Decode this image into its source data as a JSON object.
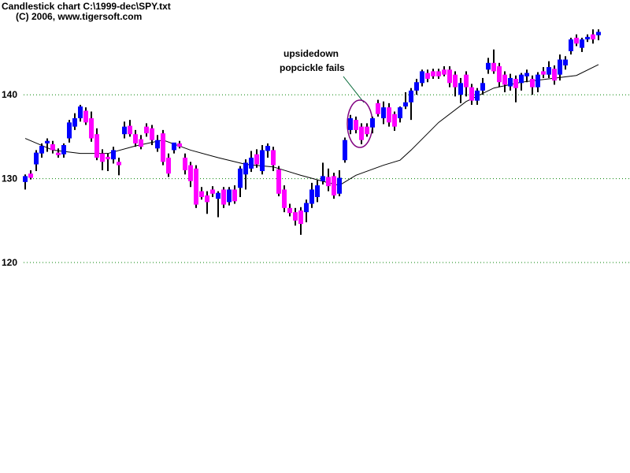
{
  "chart_data": {
    "type": "candlestick",
    "title": "Candlestick chart C:\\1999-dec\\SPY.txt",
    "subtitle": "(C) 2006, www.tigersoft.com",
    "annotation": [
      "upsidedown",
      "popcickle fails"
    ],
    "ylim": [
      94.9,
      151.3
    ],
    "yticks": [
      120,
      130,
      140
    ],
    "grid": true,
    "up_color": "#0000ff",
    "down_color": "#ff00ff",
    "open": [
      129.6,
      130.6,
      131.7,
      133,
      134.2,
      134.1,
      133.1,
      132.9,
      134.8,
      136.2,
      137.2,
      138.1,
      137.2,
      135.3,
      133,
      132.6,
      132.3,
      132,
      135.3,
      136.3,
      135.3,
      134.7,
      136.2,
      136,
      133.6,
      135.4,
      132.5,
      133.4,
      134.2,
      132.5,
      131.6,
      131.2,
      128.5,
      128,
      128.7,
      127.6,
      128.7,
      127.2,
      128.7,
      128.9,
      130.5,
      131.2,
      132.9,
      130.9,
      133.3,
      133.4,
      131.1,
      128.7,
      126.5,
      126,
      126.2,
      126,
      127,
      127.8,
      129.7,
      130.2,
      130.3,
      128.2,
      132.2,
      135.8,
      137,
      136.2,
      136.2,
      136.1,
      139,
      137.2,
      138.5,
      137.7,
      137.2,
      138.6,
      139.1,
      140.5,
      141.4,
      142.6,
      142.8,
      142.8,
      143,
      143,
      142.4,
      140,
      142.4,
      140.9,
      139.3,
      140.5,
      143,
      143.8,
      143.4,
      142.4,
      141,
      141.9,
      141.4,
      142.2,
      141.9,
      140.9,
      142.8,
      142.4,
      143.1,
      142.4,
      143.5,
      145.2,
      146.8,
      145.6,
      146.6,
      147.2,
      147.1
    ],
    "high": [
      130.5,
      131,
      133.4,
      134.2,
      134.8,
      134.5,
      133.6,
      134.2,
      137,
      137.8,
      138.8,
      138.5,
      138,
      136,
      133.5,
      133,
      133.8,
      132.5,
      136.8,
      137,
      135.8,
      135.2,
      136.6,
      136.4,
      135.2,
      135.8,
      133,
      134.2,
      134.5,
      133,
      132,
      131.6,
      129,
      128.5,
      129.1,
      128.5,
      129,
      129,
      129.2,
      131.5,
      132.3,
      133.3,
      133.5,
      134,
      134.2,
      133.8,
      131.5,
      129.2,
      127,
      126.5,
      126.6,
      127.5,
      129.5,
      129.8,
      131.9,
      131.2,
      130.7,
      131,
      134.9,
      137.6,
      137.4,
      136.6,
      136.6,
      137.4,
      139.4,
      139.2,
      139,
      138,
      138.6,
      140.3,
      140.8,
      141.9,
      143,
      143,
      143.1,
      143.1,
      143.4,
      143.4,
      142.8,
      142,
      142.8,
      141.3,
      140.8,
      142,
      144.4,
      145.4,
      143.8,
      142.8,
      142.5,
      142.3,
      142.6,
      143,
      142.3,
      142.7,
      143.3,
      144,
      143.5,
      144.8,
      144.6,
      146.8,
      147.2,
      146.8,
      147.2,
      147.8,
      147.8
    ],
    "low": [
      128.7,
      129.9,
      130.9,
      132.5,
      133.2,
      133,
      132.5,
      132.5,
      134.3,
      135.8,
      136.8,
      136.4,
      134.4,
      132.2,
      131,
      130.9,
      131.8,
      130.4,
      134.8,
      135,
      133.8,
      133.5,
      135,
      134,
      133.2,
      131.6,
      130.2,
      133,
      133.6,
      130.5,
      129,
      126.5,
      127.5,
      125.8,
      127.8,
      125.4,
      126.5,
      126.8,
      127,
      127.8,
      128.7,
      130.8,
      131.3,
      130.5,
      132.5,
      130.9,
      127.9,
      126,
      125.5,
      124.4,
      123.3,
      124.8,
      126.5,
      127.2,
      129.3,
      128.5,
      127.6,
      127.9,
      131.9,
      135.3,
      135.4,
      134.1,
      135,
      135.4,
      137.4,
      136.5,
      136.2,
      135.7,
      136.7,
      138.3,
      137,
      140,
      141,
      141.5,
      141.9,
      141.9,
      142.2,
      140.9,
      139.8,
      139,
      139.8,
      138.8,
      138.8,
      140,
      142.5,
      142.5,
      140.9,
      140.3,
      140.5,
      139.1,
      140.5,
      141.5,
      140,
      140.3,
      142,
      142,
      141.2,
      141.7,
      143,
      144.8,
      145.8,
      145.1,
      146.3,
      146.1,
      146.5
    ],
    "close": [
      130.3,
      130.1,
      133.1,
      133.9,
      134.5,
      133.4,
      132.8,
      134,
      136.7,
      137.2,
      138.6,
      136.7,
      134.8,
      132.5,
      132,
      132.3,
      133.4,
      131.6,
      136.2,
      135.3,
      134.2,
      133.8,
      135.4,
      134.6,
      134.6,
      132,
      130.6,
      134.3,
      133.8,
      131,
      129.7,
      126.9,
      127.8,
      127.2,
      128.2,
      128.3,
      126.9,
      128.7,
      127.3,
      131.2,
      131.9,
      132.5,
      131.7,
      133.4,
      133.9,
      131.6,
      128.2,
      126.5,
      125.9,
      125,
      124.6,
      127.1,
      128.7,
      129.2,
      130.3,
      129.1,
      128,
      130.1,
      134.6,
      137.2,
      135.8,
      134.6,
      135.3,
      137.2,
      137.7,
      138.5,
      136.7,
      136.2,
      138.5,
      139.1,
      140.5,
      141.5,
      142.8,
      141.9,
      142.2,
      142.2,
      142.4,
      141.4,
      140.9,
      141.4,
      140.9,
      139.3,
      140.5,
      141.4,
      143.8,
      142.8,
      141.5,
      141.2,
      142,
      140.8,
      142.4,
      142.6,
      140.9,
      142.4,
      142.4,
      143.3,
      141.7,
      144.2,
      144.2,
      146.6,
      146.1,
      146.6,
      146.9,
      146.6,
      147.5
    ],
    "ma": {
      "x": [
        0,
        5,
        10,
        15,
        20,
        25,
        30,
        35,
        40,
        45,
        50,
        55,
        57,
        60,
        65,
        68,
        70,
        75,
        80,
        85,
        90,
        95,
        100,
        104
      ],
      "values": [
        134.8,
        133.4,
        133,
        133,
        133.9,
        134.6,
        133.4,
        132.5,
        131.7,
        131.4,
        130.4,
        129.5,
        129.2,
        130.4,
        131.6,
        132.2,
        133.4,
        136.7,
        139.2,
        140.8,
        141.5,
        141.9,
        142.3,
        143.6
      ]
    }
  }
}
